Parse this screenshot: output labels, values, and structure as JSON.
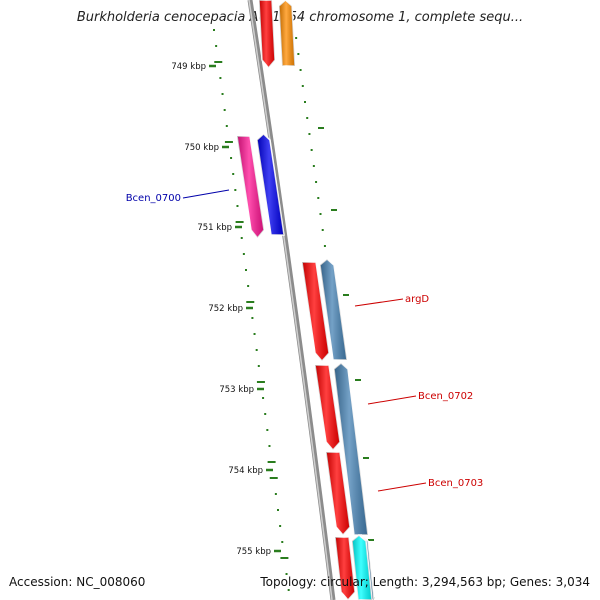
{
  "title": "Burkholderia cenocepacia AU 1054 chromosome 1, complete sequ...",
  "footer": {
    "accession": "Accession: NC_008060",
    "topology": "Topology: circular; Length: 3,294,563 bp; Genes: 3,034"
  },
  "colors": {
    "backbone": "#8c8c8c",
    "tick": "#2a7d1e",
    "label_black": "#111111",
    "label_blue": "#0000aa",
    "label_red": "#cc0000"
  },
  "axis": {
    "unit": "kbp",
    "ticks": [
      "749 kbp",
      "750 kbp",
      "751 kbp",
      "752 kbp",
      "753 kbp",
      "754 kbp",
      "755 kbp"
    ]
  },
  "features": [
    {
      "name": "",
      "strand": "forward",
      "color": "#ff0000"
    },
    {
      "name": "",
      "strand": "reverse",
      "color": "#ff8c00"
    },
    {
      "name": "",
      "strand": "forward",
      "color": "#ff1493"
    },
    {
      "name": "",
      "strand": "reverse",
      "color": "#0000ee"
    },
    {
      "name": "",
      "strand": "forward",
      "color": "#ff0000"
    },
    {
      "name": "",
      "strand": "reverse",
      "color": "#4682b4"
    },
    {
      "name": "",
      "strand": "forward",
      "color": "#ff0000"
    },
    {
      "name": "",
      "strand": "reverse",
      "color": "#4682b4"
    },
    {
      "name": "",
      "strand": "forward",
      "color": "#ff0000"
    },
    {
      "name": "",
      "strand": "reverse",
      "color": "#4682b4"
    },
    {
      "name": "",
      "strand": "forward",
      "color": "#ff0000"
    },
    {
      "name": "",
      "strand": "reverse",
      "color": "#00ffff"
    }
  ],
  "gene_labels": [
    {
      "text": "Bcen_0700",
      "color": "#0000aa"
    },
    {
      "text": "argD",
      "color": "#cc0000"
    },
    {
      "text": "Bcen_0702",
      "color": "#cc0000"
    },
    {
      "text": "Bcen_0703",
      "color": "#cc0000"
    }
  ]
}
